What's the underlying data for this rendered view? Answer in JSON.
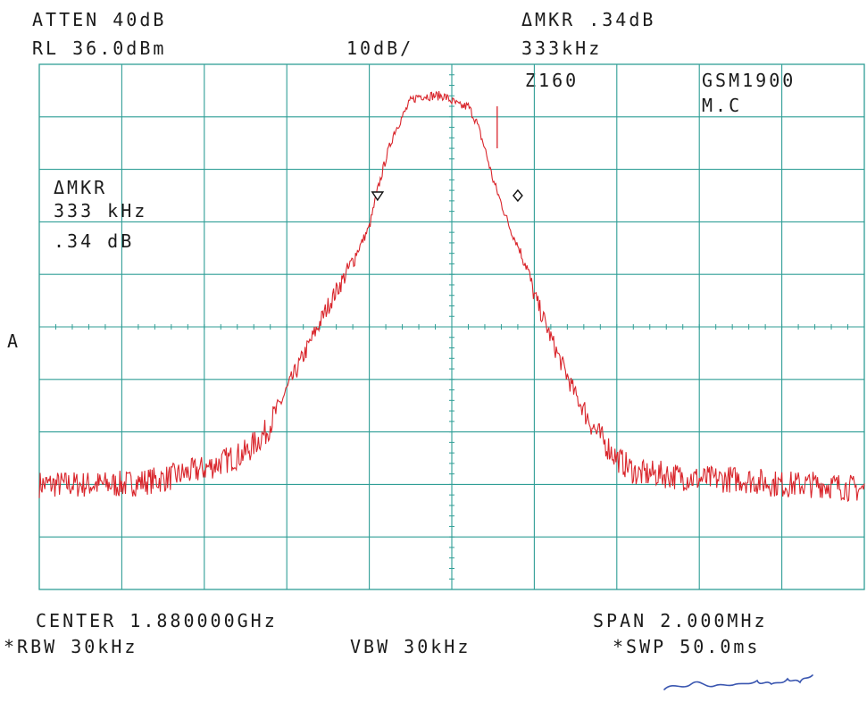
{
  "header": {
    "atten": "ATTEN 40dB",
    "rl": "RL 36.0dBm",
    "scale": "10dB/",
    "dmkr_top": "ΔMKR .34dB",
    "dmkr_top_freq": "333kHz",
    "z": "Z160",
    "band": "GSM1900",
    "mode": "M.C"
  },
  "marker_readout": {
    "title": "ΔMKR",
    "freq": "333 kHz",
    "level": ".34 dB"
  },
  "side_label": "A",
  "footer": {
    "center": "CENTER 1.880000GHz",
    "span": "SPAN 2.000MHz",
    "rbw": "*RBW 30kHz",
    "vbw": "VBW 30kHz",
    "swp": "*SWP 50.0ms"
  },
  "colors": {
    "grid": "#2f9e96",
    "trace": "#d9252b",
    "text": "#1b1b1b"
  },
  "chart_data": {
    "type": "line",
    "title": "",
    "xlabel": "",
    "ylabel": "",
    "x_unit": "MHz",
    "y_unit": "dBm",
    "xlim": [
      1879.0,
      1881.0
    ],
    "ylim": [
      -64,
      36
    ],
    "grid": true,
    "grid_divisions": [
      10,
      10
    ],
    "series": [
      {
        "name": "",
        "x": [
          1879.0,
          1879.1,
          1879.2,
          1879.3,
          1879.4,
          1879.5,
          1879.55,
          1879.6,
          1879.65,
          1879.7,
          1879.75,
          1879.8,
          1879.82,
          1879.84,
          1879.86,
          1879.9,
          1879.92,
          1879.94,
          1879.96,
          1879.98,
          1880.0,
          1880.02,
          1880.04,
          1880.06,
          1880.08,
          1880.1,
          1880.14,
          1880.18,
          1880.2,
          1880.25,
          1880.3,
          1880.35,
          1880.4,
          1880.45,
          1880.5,
          1880.6,
          1880.7,
          1880.8,
          1880.9,
          1881.0
        ],
        "y": [
          -44,
          -44,
          -44,
          -43,
          -41,
          -38,
          -34,
          -26,
          -18,
          -10,
          -3,
          5,
          12,
          18,
          23,
          29,
          30,
          30,
          30,
          30,
          29,
          28,
          28,
          25,
          20,
          14,
          5,
          -2,
          -8,
          -18,
          -27,
          -34,
          -39,
          -42,
          -42,
          -43,
          -43,
          -44,
          -44,
          -45
        ]
      }
    ],
    "markers": [
      {
        "x": 1879.82,
        "y": 11,
        "shape": "triangle-down"
      },
      {
        "x": 1880.16,
        "y": 11,
        "shape": "diamond"
      }
    ],
    "delta_marker": {
      "freq": "333 kHz",
      "level": ".34 dB"
    }
  }
}
